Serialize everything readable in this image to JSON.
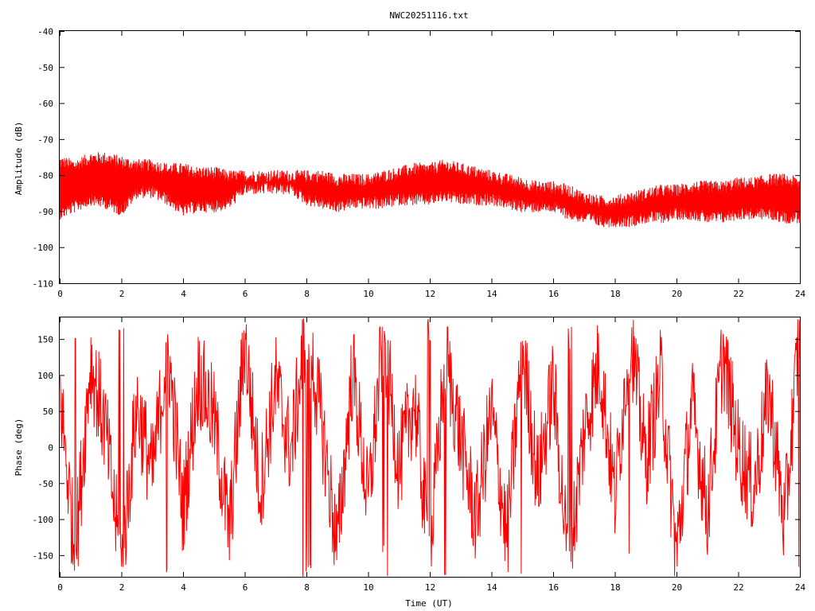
{
  "title": "NWC20251116.txt",
  "colors": {
    "trace": "#ff0000",
    "axis": "#000000",
    "background": "#ffffff"
  },
  "chart_data": [
    {
      "type": "line",
      "title": "NWC20251116.txt",
      "xlabel": "",
      "ylabel": "Amplitude (dB)",
      "xlim": [
        0,
        24
      ],
      "ylim": [
        -110,
        -40
      ],
      "xticks": [
        0,
        2,
        4,
        6,
        8,
        10,
        12,
        14,
        16,
        18,
        20,
        22,
        24
      ],
      "yticks": [
        -40,
        -50,
        -60,
        -70,
        -80,
        -90,
        -100,
        -110
      ],
      "ytick_labels": [
        "-40",
        "-50",
        "-60",
        "-70",
        "-80",
        "-90",
        "-100",
        "-110"
      ],
      "grid": false,
      "series": [
        {
          "x": [
            0,
            0.5,
            1,
            1.5,
            2,
            2.5,
            3,
            3.5,
            4,
            4.5,
            5,
            5.5,
            6,
            6.5,
            7,
            7.5,
            8,
            8.5,
            9,
            9.5,
            10,
            10.5,
            11,
            11.5,
            12,
            12.5,
            13,
            13.5,
            14,
            14.5,
            15,
            15.5,
            16,
            16.5,
            17,
            17.5,
            18,
            18.5,
            19,
            19.5,
            20,
            20.5,
            21,
            21.5,
            22,
            22.5,
            23,
            23.5,
            24
          ],
          "upper": [
            -77,
            -78,
            -76,
            -76,
            -77,
            -78,
            -78,
            -79,
            -79,
            -80,
            -80,
            -81,
            -81,
            -81,
            -81,
            -81,
            -81,
            -81,
            -82,
            -82,
            -82,
            -81,
            -80,
            -79,
            -79,
            -78,
            -79,
            -80,
            -81,
            -82,
            -83,
            -84,
            -84,
            -85,
            -87,
            -88,
            -88,
            -87,
            -86,
            -85,
            -85,
            -84,
            -84,
            -84,
            -83,
            -83,
            -82,
            -82,
            -83
          ],
          "lower": [
            -90,
            -88,
            -86,
            -87,
            -89,
            -84,
            -84,
            -86,
            -89,
            -88,
            -88,
            -87,
            -83,
            -83,
            -83,
            -83,
            -86,
            -87,
            -88,
            -87,
            -87,
            -87,
            -86,
            -86,
            -86,
            -85,
            -86,
            -86,
            -86,
            -87,
            -88,
            -88,
            -88,
            -90,
            -91,
            -92,
            -92,
            -92,
            -91,
            -91,
            -90,
            -90,
            -91,
            -91,
            -90,
            -90,
            -90,
            -91,
            -91
          ]
        }
      ]
    },
    {
      "type": "line",
      "title": "",
      "xlabel": "Time (UT)",
      "ylabel": "Phase (deg)",
      "xlim": [
        0,
        24
      ],
      "ylim": [
        -180,
        180
      ],
      "xticks": [
        0,
        2,
        4,
        6,
        8,
        10,
        12,
        14,
        16,
        18,
        20,
        22,
        24
      ],
      "yticks": [
        150,
        100,
        50,
        0,
        -50,
        -100,
        -150
      ],
      "ytick_labels": [
        "150",
        "100",
        "50",
        "0",
        "-50",
        "-100",
        "-150"
      ],
      "grid": false,
      "series": [
        {
          "x": [
            0,
            0.5,
            1,
            1.5,
            2,
            2.5,
            3,
            3.5,
            4,
            4.5,
            5,
            5.5,
            6,
            6.5,
            7,
            7.5,
            8,
            8.5,
            9,
            9.5,
            10,
            10.5,
            11,
            11.5,
            12,
            12.5,
            13,
            13.5,
            14,
            14.5,
            15,
            15.5,
            16,
            16.5,
            17,
            17.5,
            18,
            18.5,
            19,
            19.5,
            20,
            20.5,
            21,
            21.5,
            22,
            22.5,
            23,
            23.5,
            24
          ],
          "values": [
            80,
            -150,
            120,
            20,
            -170,
            60,
            -40,
            140,
            -90,
            100,
            40,
            -120,
            150,
            -60,
            90,
            -10,
            170,
            30,
            -140,
            110,
            -80,
            160,
            -30,
            70,
            -160,
            130,
            10,
            -100,
            50,
            -130,
            140,
            -50,
            90,
            -170,
            20,
            120,
            -70,
            160,
            -20,
            100,
            -150,
            60,
            -90,
            130,
            0,
            -60,
            80,
            -110,
            170
          ]
        }
      ]
    }
  ]
}
